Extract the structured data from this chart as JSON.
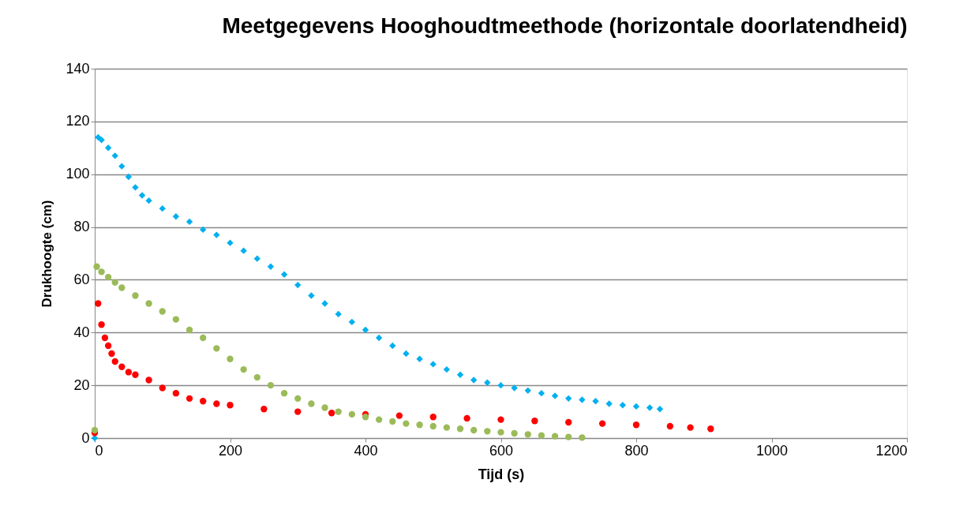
{
  "chart_data": {
    "type": "scatter",
    "title": "Meetgegevens Hooghoudtmeethode (horizontale doorlatendheid)",
    "xlabel": "Tijd (s)",
    "ylabel": "Drukhoogte (cm)",
    "xlim": [
      0,
      1200
    ],
    "xticks": [
      0,
      200,
      400,
      600,
      800,
      1000,
      1200
    ],
    "ylim": [
      0,
      140
    ],
    "yticks": [
      0,
      20,
      40,
      60,
      80,
      100,
      120,
      140
    ],
    "grid": "y",
    "series": [
      {
        "color": "#00b0f0",
        "marker": "diamond",
        "x": [
          0,
          5,
          10,
          20,
          30,
          40,
          50,
          60,
          70,
          80,
          100,
          120,
          140,
          160,
          180,
          200,
          220,
          240,
          260,
          280,
          300,
          320,
          340,
          360,
          380,
          400,
          420,
          440,
          460,
          480,
          500,
          520,
          540,
          560,
          580,
          600,
          620,
          640,
          660,
          680,
          700,
          720,
          740,
          760,
          780,
          800,
          820,
          835
        ],
        "values": [
          0,
          114,
          113,
          110,
          107,
          103,
          99,
          95,
          92,
          90,
          87,
          84,
          82,
          79,
          77,
          74,
          71,
          68,
          65,
          62,
          58,
          54,
          51,
          47,
          44,
          41,
          38,
          35,
          32,
          30,
          28,
          26,
          24,
          22,
          21,
          20,
          19,
          18,
          17,
          16,
          15,
          14.5,
          14,
          13,
          12.5,
          12,
          11.5,
          11
        ]
      },
      {
        "color": "#ff0000",
        "marker": "circle",
        "x": [
          0,
          5,
          10,
          15,
          20,
          25,
          30,
          40,
          50,
          60,
          80,
          100,
          120,
          140,
          160,
          180,
          200,
          250,
          300,
          350,
          400,
          450,
          500,
          550,
          600,
          650,
          700,
          750,
          800,
          850,
          880,
          910
        ],
        "values": [
          2,
          51,
          43,
          38,
          35,
          32,
          29,
          27,
          25,
          24,
          22,
          19,
          17,
          15,
          14,
          13,
          12.5,
          11,
          10,
          9.5,
          9,
          8.5,
          8,
          7.5,
          7,
          6.5,
          6,
          5.5,
          5,
          4.5,
          4,
          3.5
        ]
      },
      {
        "color": "#9bbb59",
        "marker": "circle",
        "x": [
          0,
          3,
          10,
          20,
          30,
          40,
          60,
          80,
          100,
          120,
          140,
          160,
          180,
          200,
          220,
          240,
          260,
          280,
          300,
          320,
          340,
          360,
          380,
          400,
          420,
          440,
          460,
          480,
          500,
          520,
          540,
          560,
          580,
          600,
          620,
          640,
          660,
          680,
          700,
          720
        ],
        "values": [
          3,
          65,
          63,
          61,
          59,
          57,
          54,
          51,
          48,
          45,
          41,
          38,
          34,
          30,
          26,
          23,
          20,
          17,
          15,
          13,
          11.5,
          10,
          9,
          8,
          7,
          6.3,
          5.5,
          5,
          4.5,
          4,
          3.5,
          3,
          2.6,
          2.2,
          1.8,
          1.4,
          1,
          0.7,
          0.4,
          0.2
        ]
      }
    ]
  }
}
